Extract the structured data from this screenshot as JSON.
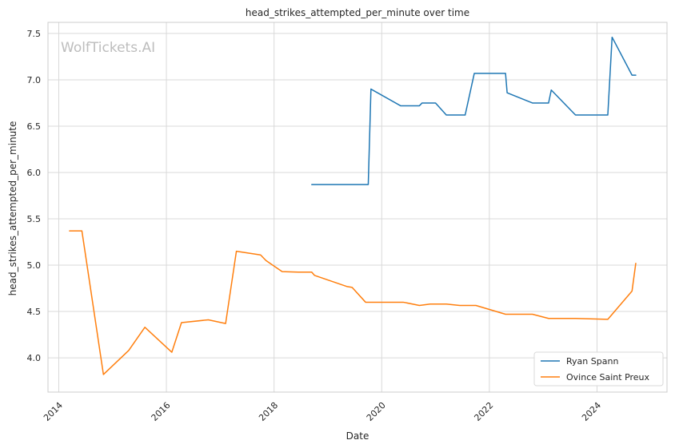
{
  "chart_data": {
    "type": "line",
    "title": "head_strikes_attempted_per_minute over time",
    "xlabel": "Date",
    "ylabel": "head_strikes_attempted_per_minute",
    "watermark": "WolfTickets.AI",
    "xlim": [
      2013.8,
      2025.3
    ],
    "ylim": [
      3.63,
      7.62
    ],
    "x_ticks": [
      2014,
      2016,
      2018,
      2020,
      2022,
      2024
    ],
    "y_ticks": [
      4.0,
      4.5,
      5.0,
      5.5,
      6.0,
      6.5,
      7.0,
      7.5
    ],
    "y_tick_labels": [
      "4.0",
      "4.5",
      "5.0",
      "5.5",
      "6.0",
      "6.5",
      "7.0",
      "7.5"
    ],
    "grid": true,
    "legend_position": "lower-right",
    "series": [
      {
        "name": "Ryan Spann",
        "color": "#1f77b4",
        "x": [
          2018.7,
          2019.75,
          2019.8,
          2020.35,
          2020.7,
          2020.75,
          2021.0,
          2021.2,
          2021.55,
          2021.72,
          2022.3,
          2022.33,
          2022.8,
          2023.1,
          2023.15,
          2023.6,
          2024.2,
          2024.28,
          2024.65,
          2024.72
        ],
        "y": [
          5.87,
          5.87,
          6.9,
          6.72,
          6.72,
          6.75,
          6.75,
          6.62,
          6.62,
          7.07,
          7.07,
          6.86,
          6.75,
          6.75,
          6.89,
          6.62,
          6.62,
          7.46,
          7.05,
          7.05
        ]
      },
      {
        "name": "Ovince Saint Preux",
        "color": "#ff7f0e",
        "x": [
          2014.2,
          2014.43,
          2014.83,
          2015.3,
          2015.6,
          2016.1,
          2016.28,
          2016.78,
          2017.1,
          2017.3,
          2017.75,
          2017.85,
          2018.15,
          2018.45,
          2018.7,
          2018.75,
          2019.35,
          2019.45,
          2019.7,
          2020.4,
          2020.7,
          2020.9,
          2021.2,
          2021.45,
          2021.75,
          2022.3,
          2022.8,
          2023.1,
          2023.6,
          2024.2,
          2024.65,
          2024.72
        ],
        "y": [
          5.37,
          5.37,
          3.82,
          4.08,
          4.33,
          4.06,
          4.38,
          4.41,
          4.37,
          5.15,
          5.11,
          5.05,
          4.93,
          4.925,
          4.925,
          4.89,
          4.77,
          4.76,
          4.6,
          4.6,
          4.565,
          4.58,
          4.58,
          4.565,
          4.565,
          4.47,
          4.47,
          4.425,
          4.425,
          4.415,
          4.72,
          5.02
        ]
      }
    ]
  }
}
